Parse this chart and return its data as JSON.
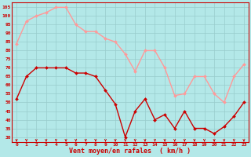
{
  "x": [
    0,
    1,
    2,
    3,
    4,
    5,
    6,
    7,
    8,
    9,
    10,
    11,
    12,
    13,
    14,
    15,
    16,
    17,
    18,
    19,
    20,
    21,
    22,
    23
  ],
  "wind_mean": [
    52,
    65,
    70,
    70,
    70,
    70,
    67,
    67,
    65,
    57,
    49,
    30,
    45,
    52,
    40,
    43,
    35,
    45,
    35,
    35,
    32,
    36,
    42,
    50
  ],
  "wind_gust": [
    84,
    97,
    100,
    102,
    105,
    105,
    95,
    91,
    91,
    87,
    85,
    78,
    68,
    80,
    80,
    70,
    54,
    55,
    65,
    65,
    55,
    50,
    65,
    72
  ],
  "mean_color": "#cc0000",
  "gust_color": "#ff9999",
  "bg_color": "#b3e8e8",
  "grid_color": "#99cccc",
  "ylabel_ticks": [
    30,
    35,
    40,
    45,
    50,
    55,
    60,
    65,
    70,
    75,
    80,
    85,
    90,
    95,
    100,
    105
  ],
  "ylim": [
    27,
    108
  ],
  "xlabel": "Vent moyen/en rafales  ( km/h )",
  "xlabel_color": "#cc0000",
  "tick_color": "#cc0000",
  "marker": "D",
  "markersize": 2,
  "linewidth": 1.0
}
